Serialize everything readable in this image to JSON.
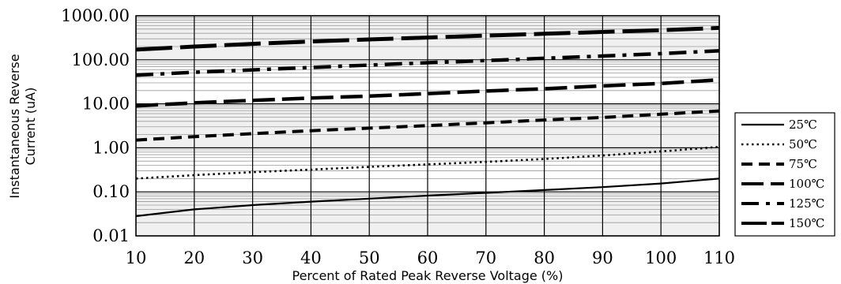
{
  "chart_data": {
    "type": "line",
    "title": "",
    "xlabel": "Percent of  Rated Peak Reverse Voltage (%)",
    "ylabel_lines": [
      "Instantaneous Reverse",
      "Current (uA)"
    ],
    "xlim": [
      10,
      110
    ],
    "ylim": [
      0.01,
      1000
    ],
    "y_scale": "log",
    "x_ticks": [
      "10",
      "20",
      "30",
      "40",
      "50",
      "60",
      "70",
      "80",
      "90",
      "100",
      "110"
    ],
    "y_ticks": [
      "0.01",
      "0.10",
      "1.00",
      "10.00",
      "100.00",
      "1000.00"
    ],
    "grid": true,
    "legend_position": "right",
    "x": [
      10,
      20,
      30,
      40,
      50,
      60,
      70,
      80,
      90,
      100,
      110
    ],
    "series": [
      {
        "name": "25℃",
        "style": "solid",
        "values": [
          0.028,
          0.04,
          0.05,
          0.06,
          0.07,
          0.082,
          0.095,
          0.11,
          0.128,
          0.155,
          0.2
        ]
      },
      {
        "name": "50℃",
        "style": "dotted",
        "values": [
          0.2,
          0.24,
          0.28,
          0.32,
          0.37,
          0.42,
          0.48,
          0.56,
          0.67,
          0.83,
          1.05
        ]
      },
      {
        "name": "75℃",
        "style": "dashed",
        "values": [
          1.5,
          1.8,
          2.1,
          2.45,
          2.8,
          3.2,
          3.7,
          4.3,
          4.9,
          5.8,
          6.9
        ]
      },
      {
        "name": "100℃",
        "style": "long-dash",
        "values": [
          9,
          10.5,
          12,
          13.5,
          15,
          17,
          19.5,
          22,
          25.5,
          29,
          35
        ]
      },
      {
        "name": "125℃",
        "style": "dash-dot",
        "values": [
          45,
          52,
          59,
          67,
          76,
          86,
          96,
          108,
          122,
          138,
          160
        ]
      },
      {
        "name": "150℃",
        "style": "extra-long-dash",
        "values": [
          170,
          200,
          230,
          260,
          290,
          320,
          355,
          390,
          430,
          470,
          530
        ]
      }
    ]
  }
}
